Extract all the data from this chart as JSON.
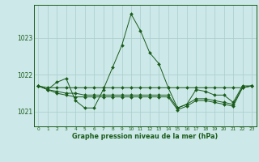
{
  "title": "Graphe pression niveau de la mer (hPa)",
  "bg_color": "#cce8e8",
  "grid_color": "#aacccc",
  "line_color": "#1a5c1a",
  "xlim": [
    -0.5,
    23.5
  ],
  "ylim": [
    1020.6,
    1023.9
  ],
  "yticks": [
    1021,
    1022,
    1023
  ],
  "xticks": [
    0,
    1,
    2,
    3,
    4,
    5,
    6,
    7,
    8,
    9,
    10,
    11,
    12,
    13,
    14,
    15,
    16,
    17,
    18,
    19,
    20,
    21,
    22,
    23
  ],
  "series": [
    {
      "x": [
        0,
        1,
        2,
        3,
        4,
        5,
        6,
        7,
        8,
        9,
        10,
        11,
        12,
        13,
        14,
        15,
        16,
        17,
        18,
        19,
        20,
        21,
        22,
        23
      ],
      "y": [
        1021.7,
        1021.6,
        1021.8,
        1021.9,
        1021.3,
        1021.1,
        1021.1,
        1021.6,
        1022.2,
        1022.8,
        1023.65,
        1023.2,
        1022.6,
        1022.3,
        1021.65,
        1021.1,
        1021.2,
        1021.6,
        1021.55,
        1021.45,
        1021.45,
        1021.25,
        1021.7,
        1021.7
      ]
    },
    {
      "x": [
        0,
        1,
        2,
        3,
        4,
        5,
        6,
        7,
        8,
        9,
        10,
        11,
        12,
        13,
        14,
        15,
        16,
        17,
        18,
        19,
        20,
        21,
        22,
        23
      ],
      "y": [
        1021.7,
        1021.65,
        1021.65,
        1021.65,
        1021.65,
        1021.65,
        1021.65,
        1021.65,
        1021.65,
        1021.65,
        1021.65,
        1021.65,
        1021.65,
        1021.65,
        1021.65,
        1021.65,
        1021.65,
        1021.65,
        1021.65,
        1021.65,
        1021.65,
        1021.65,
        1021.65,
        1021.7
      ]
    },
    {
      "x": [
        0,
        1,
        2,
        3,
        4,
        5,
        6,
        7,
        8,
        9,
        10,
        11,
        12,
        13,
        14,
        15,
        16,
        17,
        18,
        19,
        20,
        21,
        22,
        23
      ],
      "y": [
        1021.7,
        1021.6,
        1021.55,
        1021.5,
        1021.5,
        1021.45,
        1021.45,
        1021.45,
        1021.45,
        1021.45,
        1021.45,
        1021.45,
        1021.45,
        1021.45,
        1021.45,
        1021.1,
        1021.2,
        1021.35,
        1021.35,
        1021.3,
        1021.25,
        1021.2,
        1021.65,
        1021.7
      ]
    },
    {
      "x": [
        0,
        1,
        2,
        3,
        4,
        5,
        6,
        7,
        8,
        9,
        10,
        11,
        12,
        13,
        14,
        15,
        16,
        17,
        18,
        19,
        20,
        21,
        22,
        23
      ],
      "y": [
        1021.7,
        1021.6,
        1021.5,
        1021.45,
        1021.4,
        1021.4,
        1021.4,
        1021.4,
        1021.4,
        1021.4,
        1021.4,
        1021.4,
        1021.4,
        1021.4,
        1021.4,
        1021.05,
        1021.15,
        1021.3,
        1021.3,
        1021.25,
        1021.2,
        1021.15,
        1021.65,
        1021.7
      ]
    }
  ]
}
